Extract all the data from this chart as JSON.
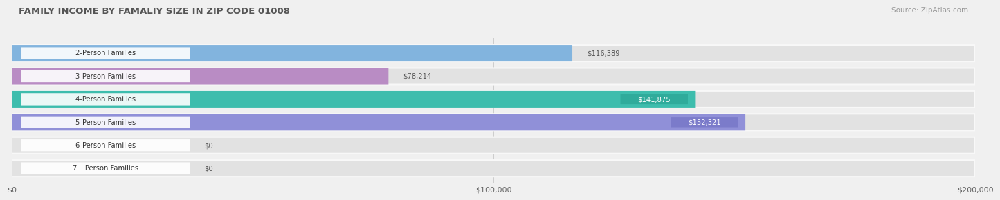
{
  "title": "FAMILY INCOME BY FAMALIY SIZE IN ZIP CODE 01008",
  "source": "Source: ZipAtlas.com",
  "categories": [
    "2-Person Families",
    "3-Person Families",
    "4-Person Families",
    "5-Person Families",
    "6-Person Families",
    "7+ Person Families"
  ],
  "values": [
    116389,
    78214,
    141875,
    152321,
    0,
    0
  ],
  "bar_colors": [
    "#82b4de",
    "#b98cc4",
    "#3dbdad",
    "#9090d8",
    "#f48fb1",
    "#f5c9a0"
  ],
  "max_value": 200000,
  "xlim": [
    0,
    200000
  ],
  "xtick_values": [
    0,
    100000,
    200000
  ],
  "xtick_labels": [
    "$0",
    "$100,000",
    "$200,000"
  ],
  "value_labels": [
    "$116,389",
    "$78,214",
    "$141,875",
    "$152,321",
    "$0",
    "$0"
  ],
  "value_inside": [
    false,
    false,
    true,
    true,
    false,
    false
  ],
  "bg_color": "#f0f0f0",
  "bar_bg_color": "#e2e2e2",
  "row_bg_color": "#ebebeb",
  "title_color": "#555555",
  "source_color": "#999999",
  "label_pill_color": "#ffffff",
  "value_pill_colors": [
    "none",
    "none",
    "#2da898",
    "#7878c8",
    "none",
    "none"
  ]
}
